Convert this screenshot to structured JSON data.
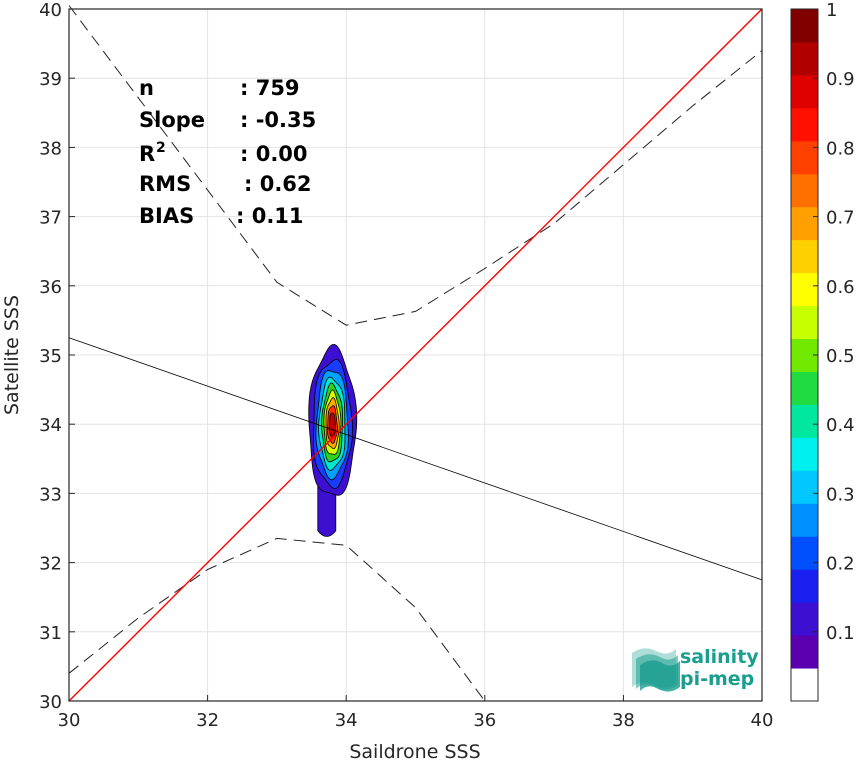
{
  "chart_data": {
    "type": "contour-scatter",
    "xlabel": "Saildrone SSS",
    "ylabel": "Satellite SSS",
    "xlim": [
      30,
      40
    ],
    "ylim": [
      30,
      40
    ],
    "xticks": [
      30,
      32,
      34,
      36,
      38,
      40
    ],
    "yticks": [
      30,
      31,
      32,
      33,
      34,
      35,
      36,
      37,
      38,
      39,
      40
    ],
    "grid": true,
    "stats": [
      {
        "label": "n",
        "value": ": 759"
      },
      {
        "label": "Slope",
        "value": ": -0.35"
      },
      {
        "label": "R",
        "sup": "2",
        "value": ": 0.00"
      },
      {
        "label": "RMS",
        "value": ": 0.62"
      },
      {
        "label": "BIAS",
        "value": ": 0.11"
      }
    ],
    "one_to_one_line": {
      "x": [
        30,
        40
      ],
      "y": [
        30,
        40
      ],
      "color": "#ff0000"
    },
    "regression_line": {
      "x": [
        30,
        40
      ],
      "y": [
        35.25,
        31.75
      ],
      "color": "#000000"
    },
    "confidence_upper": {
      "x": [
        30,
        33,
        34,
        35,
        36,
        37,
        38,
        39,
        40
      ],
      "y": [
        40.05,
        36.05,
        35.43,
        35.63,
        36.25,
        36.9,
        37.75,
        38.6,
        39.4
      ]
    },
    "confidence_lower": {
      "x": [
        30,
        31,
        32,
        33,
        34,
        35,
        36
      ],
      "y": [
        30.4,
        31.2,
        31.9,
        32.35,
        32.25,
        31.35,
        30.0
      ]
    },
    "density_contours": {
      "center": [
        33.8,
        33.95
      ],
      "levels": [
        {
          "level": 0.05,
          "color": "#3d0fd0",
          "rx": 0.34,
          "ry_up": 1.15,
          "ry_down": 1.0
        },
        {
          "level": 0.2,
          "color": "#1a3cff",
          "rx": 0.28,
          "ry_up": 0.98,
          "ry_down": 0.85
        },
        {
          "level": 0.35,
          "color": "#00a0ff",
          "rx": 0.23,
          "ry_up": 0.85,
          "ry_down": 0.72
        },
        {
          "level": 0.45,
          "color": "#00e8d0",
          "rx": 0.19,
          "ry_up": 0.72,
          "ry_down": 0.6
        },
        {
          "level": 0.55,
          "color": "#30d020",
          "rx": 0.15,
          "ry_up": 0.62,
          "ry_down": 0.5
        },
        {
          "level": 0.65,
          "color": "#d8ff00",
          "rx": 0.12,
          "ry_up": 0.52,
          "ry_down": 0.4
        },
        {
          "level": 0.75,
          "color": "#ffaa00",
          "rx": 0.095,
          "ry_up": 0.42,
          "ry_down": 0.3
        },
        {
          "level": 0.85,
          "color": "#ff3000",
          "rx": 0.07,
          "ry_up": 0.32,
          "ry_down": 0.22
        },
        {
          "level": 0.95,
          "color": "#c00000",
          "rx": 0.045,
          "ry_up": 0.22,
          "ry_down": 0.14
        }
      ],
      "tail": {
        "x": 33.72,
        "y_top": 33.1,
        "y_bottom": 32.38,
        "half_width": 0.13,
        "color": "#3d0fd0"
      }
    },
    "colorbar": {
      "ticks": [
        0.1,
        0.2,
        0.3,
        0.4,
        0.5,
        0.6,
        0.7,
        0.8,
        0.9,
        1
      ],
      "tick_labels": [
        "0.1",
        "0.2",
        "0.3",
        "0.4",
        "0.5",
        "0.6",
        "0.7",
        "0.8",
        "0.9",
        "1"
      ],
      "colors": [
        "#ffffff",
        "#5a00b0",
        "#3d0fd0",
        "#1a20f0",
        "#0050ff",
        "#0090ff",
        "#00c8ff",
        "#00f0f0",
        "#00e8a0",
        "#20dc40",
        "#70e800",
        "#c8ff00",
        "#ffff00",
        "#ffd000",
        "#ffa000",
        "#ff7000",
        "#ff4000",
        "#ff1000",
        "#e00000",
        "#b00000",
        "#800000"
      ]
    }
  },
  "logo": {
    "line1": "salinity",
    "line2": "pi-mep"
  }
}
